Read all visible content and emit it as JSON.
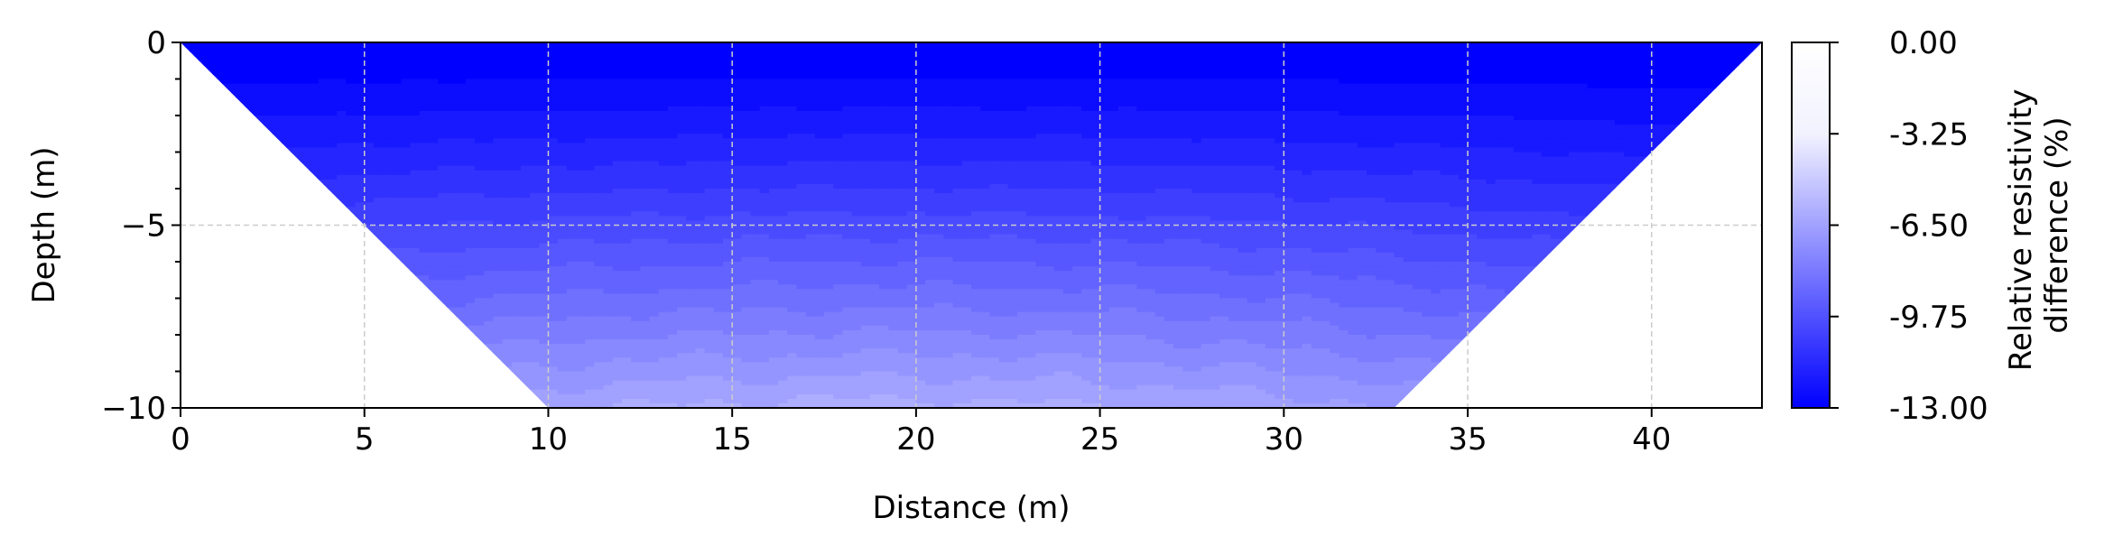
{
  "chart_data": {
    "type": "heatmap",
    "subtype": "filled-contour-section",
    "xlabel": "Distance (m)",
    "ylabel": "Depth (m)",
    "xlim": [
      0,
      43
    ],
    "ylim": [
      -10,
      0
    ],
    "x_ticks": [
      0,
      5,
      10,
      15,
      20,
      25,
      30,
      35,
      40
    ],
    "x_tick_labels": [
      "0",
      "5",
      "10",
      "15",
      "20",
      "25",
      "30",
      "35",
      "40"
    ],
    "y_ticks": [
      0,
      -5,
      -10
    ],
    "y_tick_labels": [
      "0",
      "−5",
      "−10"
    ],
    "grid": true,
    "section_polygon": [
      [
        0,
        0
      ],
      [
        43,
        0
      ],
      [
        33,
        -10
      ],
      [
        10,
        -10
      ]
    ],
    "colorbar": {
      "label_line1": "Relative resistivity",
      "label_line2": "difference (%)",
      "min": -13.0,
      "max": 0.0,
      "ticks": [
        0.0,
        -3.25,
        -6.5,
        -9.75,
        -13.0
      ],
      "tick_labels": [
        "0.00",
        "-3.25",
        "-6.50",
        "-9.75",
        "-13.00"
      ],
      "color_min": "#0000ff",
      "color_mid": "#f2f2ff",
      "color_max": "#ffffff"
    },
    "contour_levels": [
      -13,
      -12.5,
      -12,
      -11.5,
      -11,
      -10.5,
      -10,
      -9.5,
      -9,
      -8.5,
      -8,
      -7.5,
      -7,
      -6.5,
      -6
    ],
    "value_model": {
      "surface_value": -13.0,
      "max_value": -5.8,
      "max_at_x": 19,
      "max_at_depth": -10,
      "lateral_falloff": 0.22
    }
  }
}
